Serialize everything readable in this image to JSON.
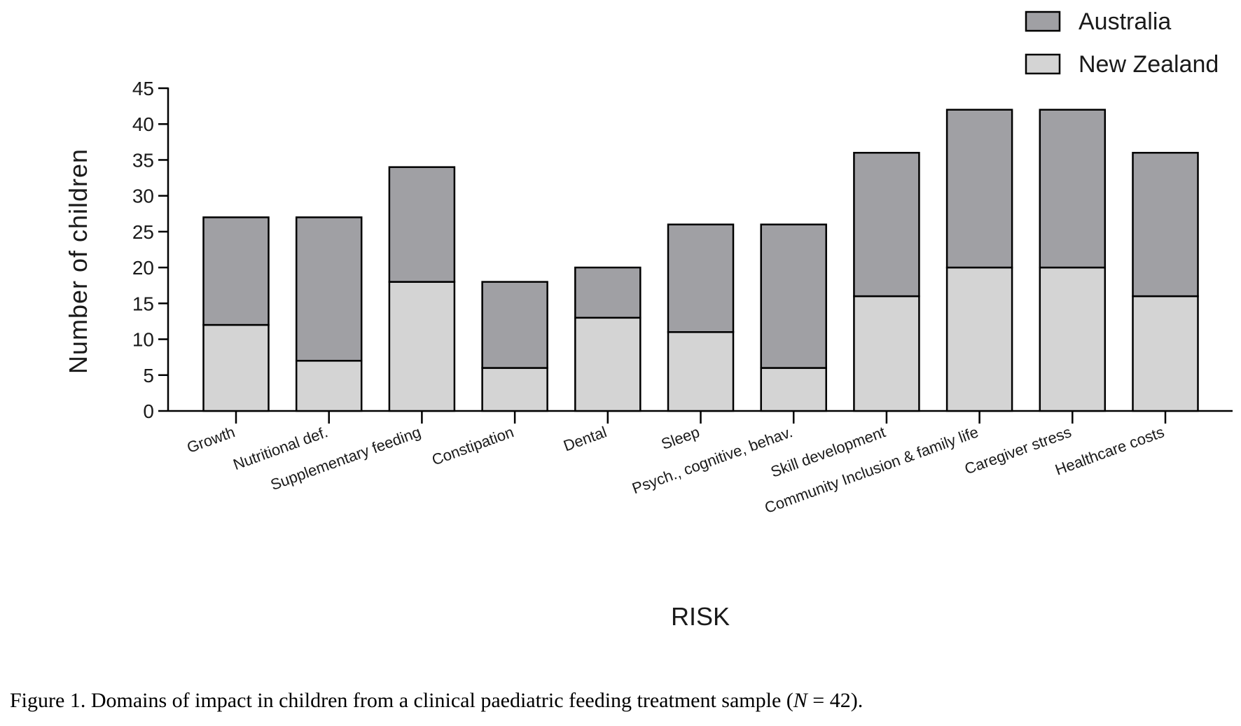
{
  "chart_data": {
    "type": "bar",
    "stacked": true,
    "title": "",
    "xlabel": "RISK",
    "ylabel": "Number of children",
    "ylim": [
      0,
      45
    ],
    "yticks": [
      0,
      5,
      10,
      15,
      20,
      25,
      30,
      35,
      40,
      45
    ],
    "categories": [
      "Growth",
      "Nutritional def.",
      "Supplementary feeding",
      "Constipation",
      "Dental",
      "Sleep",
      "Psych., cognitive, behav.",
      "Skill development",
      "Community Inclusion & family life",
      "Caregiver stress",
      "Healthcare costs"
    ],
    "series": [
      {
        "name": "New Zealand",
        "color": "#d4d4d4",
        "values": [
          12,
          7,
          18,
          6,
          13,
          11,
          6,
          16,
          20,
          20,
          16
        ]
      },
      {
        "name": "Australia",
        "color": "#a0a0a4",
        "values": [
          15,
          20,
          16,
          12,
          7,
          15,
          20,
          20,
          22,
          22,
          20
        ]
      }
    ],
    "legend": {
      "position": "top-right",
      "entries": [
        "Australia",
        "New Zealand"
      ]
    },
    "grid": false
  },
  "caption": {
    "prefix": "Figure 1. Domains of impact in children from a clinical paediatric feeding treatment sample (",
    "n_symbol": "N",
    "suffix": " = 42)."
  }
}
